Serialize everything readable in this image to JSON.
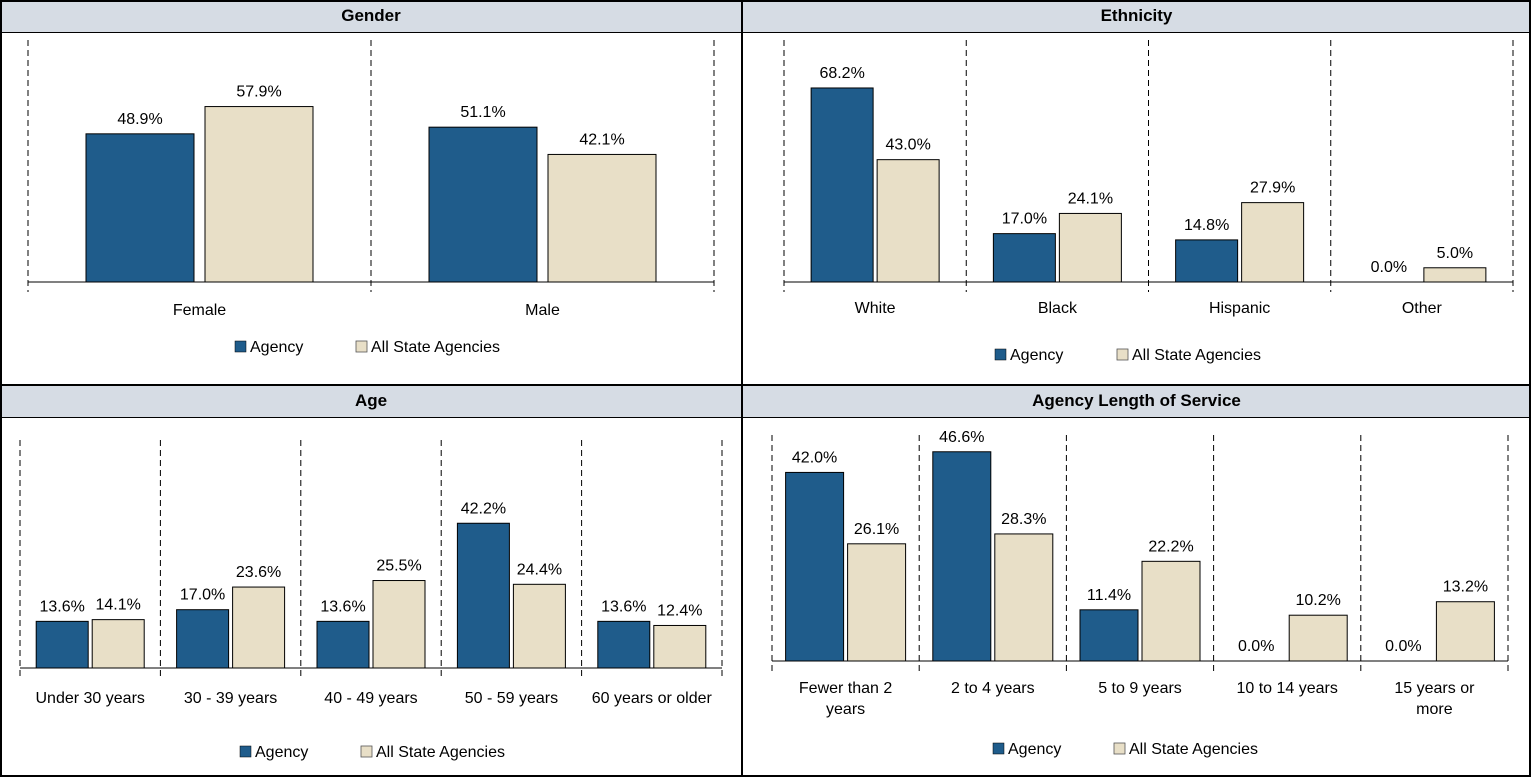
{
  "colors": {
    "agency": "#1f5c8b",
    "state": "#e8dfc7",
    "header_bg": "#d6dce4"
  },
  "legend": {
    "agency": "Agency",
    "state": "All State Agencies"
  },
  "chart_data": [
    {
      "type": "bar",
      "title": "Gender",
      "categories": [
        "Female",
        "Male"
      ],
      "series": [
        {
          "name": "Agency",
          "values": [
            48.9,
            51.1
          ],
          "labels": [
            "48.9%",
            "51.1%"
          ]
        },
        {
          "name": "All State Agencies",
          "values": [
            57.9,
            42.1
          ],
          "labels": [
            "57.9%",
            "42.1%"
          ]
        }
      ],
      "ylim": [
        0,
        70
      ],
      "grid": false,
      "legend_position": "bottom"
    },
    {
      "type": "bar",
      "title": "Ethnicity",
      "categories": [
        "White",
        "Black",
        "Hispanic",
        "Other"
      ],
      "series": [
        {
          "name": "Agency",
          "values": [
            68.2,
            17.0,
            14.8,
            0.0
          ],
          "labels": [
            "68.2%",
            "17.0%",
            "14.8%",
            "0.0%"
          ]
        },
        {
          "name": "All State Agencies",
          "values": [
            43.0,
            24.1,
            27.9,
            5.0
          ],
          "labels": [
            "43.0%",
            "24.1%",
            "27.9%",
            "5.0%"
          ]
        }
      ],
      "ylim": [
        0,
        80
      ],
      "grid": false,
      "legend_position": "bottom"
    },
    {
      "type": "bar",
      "title": "Age",
      "categories": [
        "Under 30 years",
        "30 - 39 years",
        "40 - 49 years",
        "50 - 59 years",
        "60 years or older"
      ],
      "series": [
        {
          "name": "Agency",
          "values": [
            13.6,
            17.0,
            13.6,
            42.2,
            13.6
          ],
          "labels": [
            "13.6%",
            "17.0%",
            "13.6%",
            "42.2%",
            "13.6%"
          ]
        },
        {
          "name": "All State Agencies",
          "values": [
            14.1,
            23.6,
            25.5,
            24.4,
            12.4
          ],
          "labels": [
            "14.1%",
            "23.6%",
            "25.5%",
            "24.4%",
            "12.4%"
          ]
        }
      ],
      "ylim": [
        0,
        50
      ],
      "grid": false,
      "legend_position": "bottom"
    },
    {
      "type": "bar",
      "title": "Agency Length of Service",
      "categories": [
        "Fewer than 2 years",
        "2 to 4 years",
        "5 to 9 years",
        "10 to 14 years",
        "15 years or more"
      ],
      "series": [
        {
          "name": "Agency",
          "values": [
            42.0,
            46.6,
            11.4,
            0.0,
            0.0
          ],
          "labels": [
            "42.0%",
            "46.6%",
            "11.4%",
            "0.0%",
            "0.0%"
          ]
        },
        {
          "name": "All State Agencies",
          "values": [
            26.1,
            28.3,
            22.2,
            10.2,
            13.2
          ],
          "labels": [
            "26.1%",
            "28.3%",
            "22.2%",
            "10.2%",
            "13.2%"
          ]
        }
      ],
      "ylim": [
        0,
        50
      ],
      "grid": false,
      "legend_position": "bottom"
    }
  ]
}
